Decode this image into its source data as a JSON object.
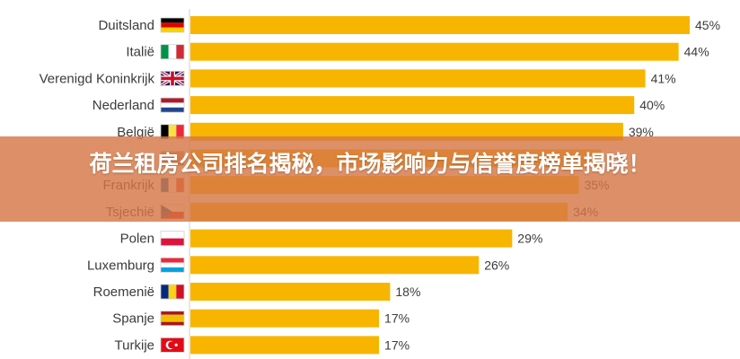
{
  "chart_data": {
    "type": "bar",
    "orientation": "horizontal",
    "categories": [
      "Duitsland",
      "Italië",
      "Verenigd Koninkrijk",
      "Nederland",
      "België",
      "",
      "Frankrijk",
      "Tsjechië",
      "Polen",
      "Luxemburg",
      "Roemenië",
      "Spanje",
      "Turkije"
    ],
    "values": [
      45,
      44,
      41,
      40,
      39,
      37,
      35,
      34,
      29,
      26,
      18,
      17,
      17
    ],
    "value_labels": [
      "45%",
      "44%",
      "41%",
      "40%",
      "39%",
      "",
      "35%",
      "34%",
      "29%",
      "26%",
      "18%",
      "17%",
      "17%"
    ],
    "flag_icons": [
      "flag-germany-icon",
      "flag-italy-icon",
      "flag-uk-icon",
      "flag-netherlands-icon",
      "flag-belgium-icon",
      "flag-hidden-icon",
      "flag-france-icon",
      "flag-czechia-icon",
      "flag-poland-icon",
      "flag-luxembourg-icon",
      "flag-romania-icon",
      "flag-spain-icon",
      "flag-turkey-icon"
    ],
    "bar_color": "#f7b500",
    "xlim": [
      0,
      45
    ],
    "grid": false,
    "legend": "none"
  },
  "banner": {
    "title": "荷兰租房公司排名揭秘，市场影响力与信誉度榜单揭晓！",
    "color": "#d67846"
  }
}
